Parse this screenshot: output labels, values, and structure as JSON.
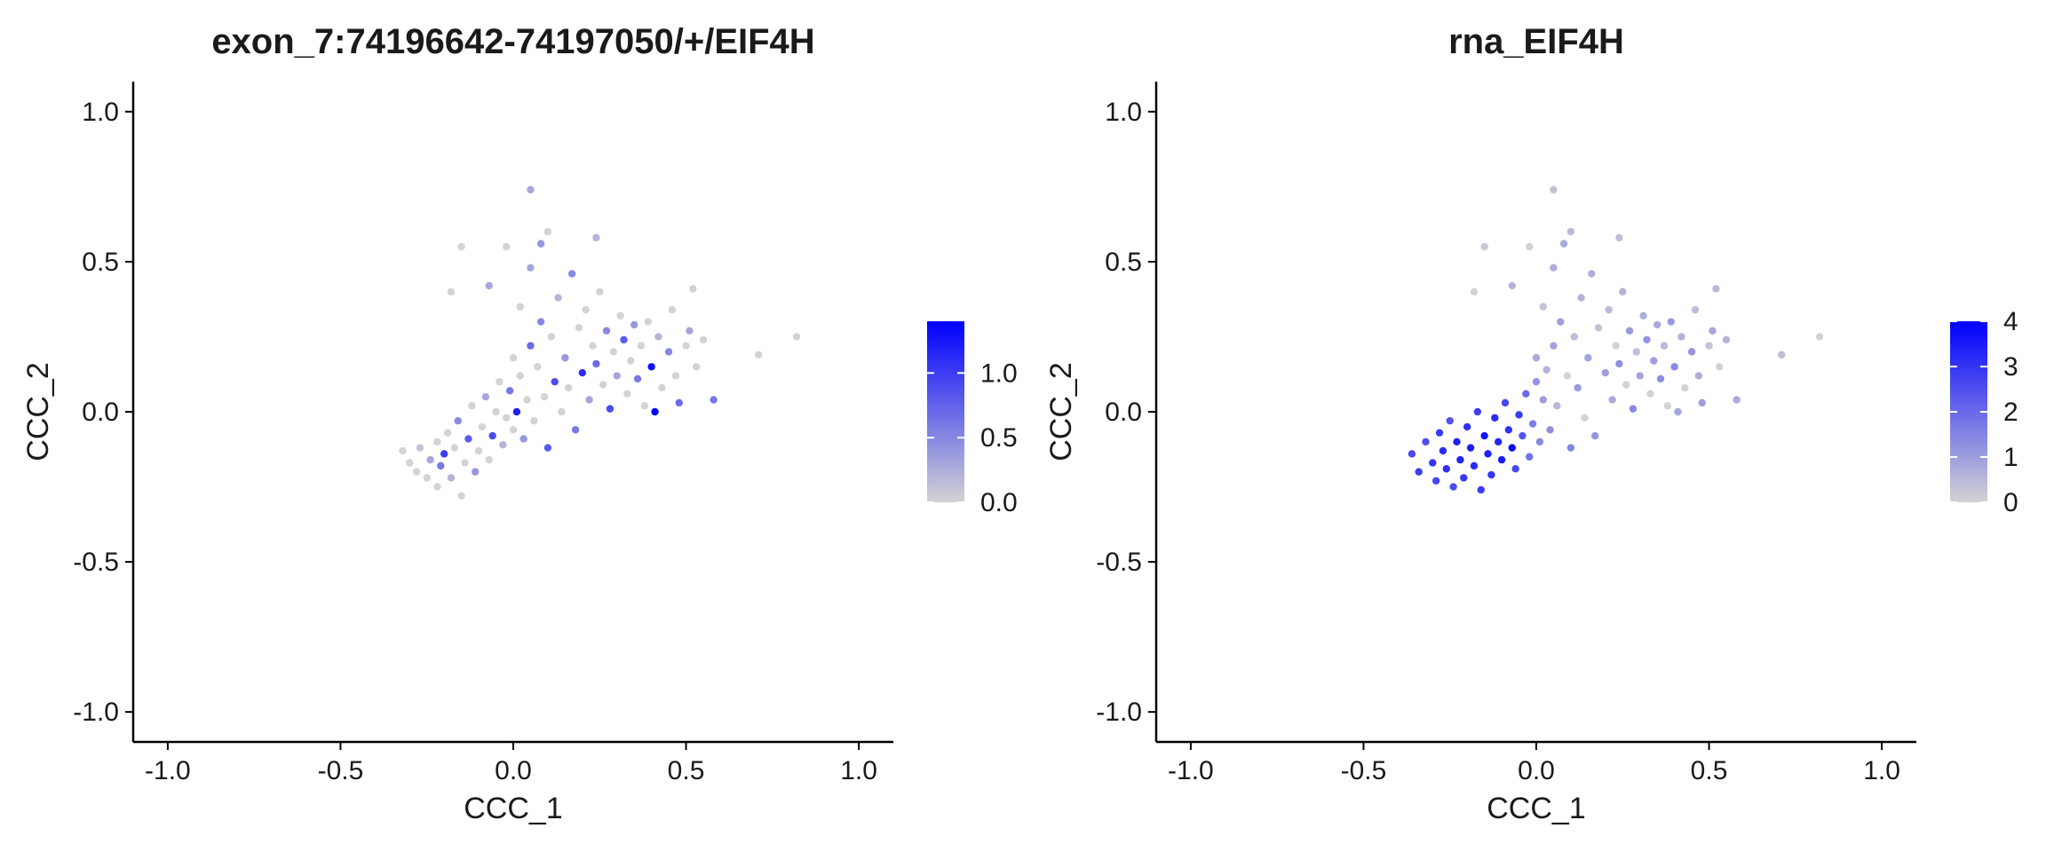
{
  "chart_data": [
    {
      "type": "scatter",
      "title": "exon_7:74196642-74197050/+/EIF4H",
      "xlabel": "CCC_1",
      "ylabel": "CCC_2",
      "xlim": [
        -1.1,
        1.1
      ],
      "ylim": [
        -1.1,
        1.1
      ],
      "x_ticks": [
        -1.0,
        -0.5,
        0.0,
        0.5,
        1.0
      ],
      "x_tick_labels": [
        "-1.0",
        "-0.5",
        "0.0",
        "0.5",
        "1.0"
      ],
      "y_ticks": [
        -1.0,
        -0.5,
        0.0,
        0.5,
        1.0
      ],
      "y_tick_labels": [
        "-1.0",
        "-0.5",
        "0.0",
        "0.5",
        "1.0"
      ],
      "grid": false,
      "legend_position": "right",
      "color_scale": {
        "low": "#d3d3d3",
        "high": "#0000ff",
        "min": 0.0,
        "max": 1.4,
        "ticks": [
          0.0,
          0.5,
          1.0
        ],
        "tick_labels": [
          "0.0",
          "0.5",
          "1.0"
        ]
      },
      "points": [
        {
          "x": -0.32,
          "y": -0.13,
          "v": 0.0
        },
        {
          "x": -0.3,
          "y": -0.17,
          "v": 0.0
        },
        {
          "x": -0.28,
          "y": -0.2,
          "v": 0.0
        },
        {
          "x": -0.27,
          "y": -0.12,
          "v": 0.1
        },
        {
          "x": -0.25,
          "y": -0.22,
          "v": 0.0
        },
        {
          "x": -0.24,
          "y": -0.16,
          "v": 0.3
        },
        {
          "x": -0.22,
          "y": -0.1,
          "v": 0.0
        },
        {
          "x": -0.22,
          "y": -0.25,
          "v": 0.0
        },
        {
          "x": -0.21,
          "y": -0.18,
          "v": 0.6
        },
        {
          "x": -0.2,
          "y": -0.14,
          "v": 1.0
        },
        {
          "x": -0.19,
          "y": -0.07,
          "v": 0.0
        },
        {
          "x": -0.18,
          "y": -0.22,
          "v": 0.2
        },
        {
          "x": -0.17,
          "y": -0.12,
          "v": 0.0
        },
        {
          "x": -0.16,
          "y": -0.03,
          "v": 0.5
        },
        {
          "x": -0.15,
          "y": -0.28,
          "v": 0.0
        },
        {
          "x": -0.14,
          "y": -0.17,
          "v": 0.0
        },
        {
          "x": -0.13,
          "y": -0.09,
          "v": 0.8
        },
        {
          "x": -0.12,
          "y": 0.02,
          "v": 0.0
        },
        {
          "x": -0.11,
          "y": -0.2,
          "v": 0.4
        },
        {
          "x": -0.1,
          "y": -0.13,
          "v": 0.0
        },
        {
          "x": -0.09,
          "y": -0.05,
          "v": 0.0
        },
        {
          "x": -0.08,
          "y": 0.05,
          "v": 0.3
        },
        {
          "x": -0.07,
          "y": -0.16,
          "v": 0.0
        },
        {
          "x": -0.06,
          "y": -0.08,
          "v": 0.9
        },
        {
          "x": -0.05,
          "y": 0.0,
          "v": 0.0
        },
        {
          "x": -0.04,
          "y": 0.1,
          "v": 0.0
        },
        {
          "x": -0.03,
          "y": -0.11,
          "v": 0.2
        },
        {
          "x": -0.02,
          "y": -0.02,
          "v": 0.0
        },
        {
          "x": -0.01,
          "y": 0.07,
          "v": 0.6
        },
        {
          "x": 0.0,
          "y": -0.06,
          "v": 0.0
        },
        {
          "x": 0.0,
          "y": 0.18,
          "v": 0.0
        },
        {
          "x": 0.01,
          "y": 0.0,
          "v": 1.2
        },
        {
          "x": 0.02,
          "y": 0.12,
          "v": 0.0
        },
        {
          "x": 0.03,
          "y": -0.09,
          "v": 0.4
        },
        {
          "x": 0.04,
          "y": 0.04,
          "v": 0.0
        },
        {
          "x": 0.05,
          "y": 0.22,
          "v": 0.7
        },
        {
          "x": 0.05,
          "y": 0.48,
          "v": 0.3
        },
        {
          "x": 0.06,
          "y": -0.03,
          "v": 0.0
        },
        {
          "x": 0.07,
          "y": 0.15,
          "v": 0.0
        },
        {
          "x": 0.08,
          "y": 0.3,
          "v": 0.5
        },
        {
          "x": 0.08,
          "y": 0.56,
          "v": 0.4
        },
        {
          "x": 0.09,
          "y": 0.05,
          "v": 0.0
        },
        {
          "x": 0.1,
          "y": -0.12,
          "v": 0.8
        },
        {
          "x": 0.11,
          "y": 0.25,
          "v": 0.0
        },
        {
          "x": 0.12,
          "y": 0.1,
          "v": 0.9
        },
        {
          "x": 0.13,
          "y": 0.38,
          "v": 0.2
        },
        {
          "x": 0.14,
          "y": 0.0,
          "v": 0.0
        },
        {
          "x": 0.15,
          "y": 0.18,
          "v": 0.4
        },
        {
          "x": 0.16,
          "y": 0.08,
          "v": 0.0
        },
        {
          "x": 0.17,
          "y": 0.46,
          "v": 0.5
        },
        {
          "x": 0.18,
          "y": -0.06,
          "v": 0.6
        },
        {
          "x": 0.19,
          "y": 0.28,
          "v": 0.0
        },
        {
          "x": 0.2,
          "y": 0.13,
          "v": 1.1
        },
        {
          "x": 0.21,
          "y": 0.34,
          "v": 0.0
        },
        {
          "x": 0.22,
          "y": 0.04,
          "v": 0.3
        },
        {
          "x": 0.23,
          "y": 0.22,
          "v": 0.0
        },
        {
          "x": 0.24,
          "y": 0.16,
          "v": 0.7
        },
        {
          "x": 0.25,
          "y": 0.4,
          "v": 0.0
        },
        {
          "x": 0.26,
          "y": 0.09,
          "v": 0.0
        },
        {
          "x": 0.27,
          "y": 0.27,
          "v": 0.5
        },
        {
          "x": 0.28,
          "y": 0.01,
          "v": 0.9
        },
        {
          "x": 0.29,
          "y": 0.2,
          "v": 0.0
        },
        {
          "x": 0.3,
          "y": 0.12,
          "v": 0.3
        },
        {
          "x": 0.31,
          "y": 0.32,
          "v": 0.0
        },
        {
          "x": 0.32,
          "y": 0.24,
          "v": 0.8
        },
        {
          "x": 0.33,
          "y": 0.06,
          "v": 0.0
        },
        {
          "x": 0.34,
          "y": 0.17,
          "v": 0.0
        },
        {
          "x": 0.35,
          "y": 0.29,
          "v": 0.4
        },
        {
          "x": 0.36,
          "y": 0.11,
          "v": 0.6
        },
        {
          "x": 0.37,
          "y": 0.22,
          "v": 0.0
        },
        {
          "x": 0.38,
          "y": 0.02,
          "v": 0.0
        },
        {
          "x": 0.39,
          "y": 0.3,
          "v": 0.0
        },
        {
          "x": 0.4,
          "y": 0.15,
          "v": 1.3
        },
        {
          "x": 0.41,
          "y": 0.0,
          "v": 1.4
        },
        {
          "x": 0.42,
          "y": 0.25,
          "v": 0.2
        },
        {
          "x": 0.43,
          "y": 0.08,
          "v": 0.0
        },
        {
          "x": 0.45,
          "y": 0.2,
          "v": 0.5
        },
        {
          "x": 0.46,
          "y": 0.34,
          "v": 0.0
        },
        {
          "x": 0.47,
          "y": 0.12,
          "v": 0.0
        },
        {
          "x": 0.48,
          "y": 0.03,
          "v": 0.7
        },
        {
          "x": 0.5,
          "y": 0.22,
          "v": 0.0
        },
        {
          "x": 0.51,
          "y": 0.27,
          "v": 0.3
        },
        {
          "x": 0.52,
          "y": 0.41,
          "v": 0.0
        },
        {
          "x": 0.53,
          "y": 0.15,
          "v": 0.0
        },
        {
          "x": 0.55,
          "y": 0.24,
          "v": 0.0
        },
        {
          "x": 0.58,
          "y": 0.04,
          "v": 0.6
        },
        {
          "x": 0.71,
          "y": 0.19,
          "v": 0.0
        },
        {
          "x": 0.82,
          "y": 0.25,
          "v": 0.0
        },
        {
          "x": 0.05,
          "y": 0.74,
          "v": 0.3
        },
        {
          "x": 0.1,
          "y": 0.6,
          "v": 0.0
        },
        {
          "x": 0.24,
          "y": 0.58,
          "v": 0.2
        },
        {
          "x": -0.02,
          "y": 0.55,
          "v": 0.0
        },
        {
          "x": -0.15,
          "y": 0.55,
          "v": 0.0
        },
        {
          "x": -0.18,
          "y": 0.4,
          "v": 0.0
        },
        {
          "x": -0.07,
          "y": 0.42,
          "v": 0.3
        },
        {
          "x": 0.02,
          "y": 0.35,
          "v": 0.0
        }
      ]
    },
    {
      "type": "scatter",
      "title": "rna_EIF4H",
      "xlabel": "CCC_1",
      "ylabel": "CCC_2",
      "xlim": [
        -1.1,
        1.1
      ],
      "ylim": [
        -1.1,
        1.1
      ],
      "x_ticks": [
        -1.0,
        -0.5,
        0.0,
        0.5,
        1.0
      ],
      "x_tick_labels": [
        "-1.0",
        "-0.5",
        "0.0",
        "0.5",
        "1.0"
      ],
      "y_ticks": [
        -1.0,
        -0.5,
        0.0,
        0.5,
        1.0
      ],
      "y_tick_labels": [
        "-1.0",
        "-0.5",
        "0.0",
        "0.5",
        "1.0"
      ],
      "grid": false,
      "legend_position": "right",
      "color_scale": {
        "low": "#d3d3d3",
        "high": "#0000ff",
        "min": 0.0,
        "max": 4.0,
        "ticks": [
          0,
          1,
          2,
          3,
          4
        ],
        "tick_labels": [
          "0",
          "1",
          "2",
          "3",
          "4"
        ]
      },
      "points": [
        {
          "x": -0.36,
          "y": -0.14,
          "v": 2.6
        },
        {
          "x": -0.34,
          "y": -0.2,
          "v": 2.8
        },
        {
          "x": -0.32,
          "y": -0.1,
          "v": 2.5
        },
        {
          "x": -0.3,
          "y": -0.17,
          "v": 3.0
        },
        {
          "x": -0.29,
          "y": -0.23,
          "v": 2.7
        },
        {
          "x": -0.28,
          "y": -0.07,
          "v": 2.9
        },
        {
          "x": -0.27,
          "y": -0.13,
          "v": 3.2
        },
        {
          "x": -0.26,
          "y": -0.19,
          "v": 3.1
        },
        {
          "x": -0.25,
          "y": -0.03,
          "v": 2.4
        },
        {
          "x": -0.24,
          "y": -0.25,
          "v": 2.6
        },
        {
          "x": -0.23,
          "y": -0.1,
          "v": 3.4
        },
        {
          "x": -0.22,
          "y": -0.16,
          "v": 3.3
        },
        {
          "x": -0.21,
          "y": -0.22,
          "v": 3.0
        },
        {
          "x": -0.2,
          "y": -0.05,
          "v": 3.1
        },
        {
          "x": -0.19,
          "y": -0.12,
          "v": 3.5
        },
        {
          "x": -0.18,
          "y": -0.18,
          "v": 3.2
        },
        {
          "x": -0.17,
          "y": 0.0,
          "v": 2.8
        },
        {
          "x": -0.16,
          "y": -0.26,
          "v": 2.9
        },
        {
          "x": -0.15,
          "y": -0.08,
          "v": 3.6
        },
        {
          "x": -0.14,
          "y": -0.14,
          "v": 3.4
        },
        {
          "x": -0.13,
          "y": -0.21,
          "v": 3.0
        },
        {
          "x": -0.12,
          "y": -0.02,
          "v": 3.2
        },
        {
          "x": -0.11,
          "y": -0.1,
          "v": 3.3
        },
        {
          "x": -0.1,
          "y": -0.16,
          "v": 3.5
        },
        {
          "x": -0.09,
          "y": 0.03,
          "v": 2.7
        },
        {
          "x": -0.08,
          "y": -0.06,
          "v": 3.1
        },
        {
          "x": -0.07,
          "y": -0.12,
          "v": 3.9
        },
        {
          "x": -0.06,
          "y": -0.19,
          "v": 2.6
        },
        {
          "x": -0.05,
          "y": -0.01,
          "v": 2.9
        },
        {
          "x": -0.04,
          "y": -0.08,
          "v": 2.4
        },
        {
          "x": -0.03,
          "y": 0.06,
          "v": 2.0
        },
        {
          "x": -0.02,
          "y": -0.15,
          "v": 1.8
        },
        {
          "x": -0.01,
          "y": -0.04,
          "v": 1.6
        },
        {
          "x": 0.0,
          "y": 0.1,
          "v": 1.2
        },
        {
          "x": 0.0,
          "y": 0.18,
          "v": 0.8
        },
        {
          "x": 0.01,
          "y": -0.1,
          "v": 1.4
        },
        {
          "x": 0.02,
          "y": 0.04,
          "v": 1.0
        },
        {
          "x": 0.03,
          "y": 0.14,
          "v": 0.6
        },
        {
          "x": 0.04,
          "y": -0.06,
          "v": 1.3
        },
        {
          "x": 0.05,
          "y": 0.22,
          "v": 0.9
        },
        {
          "x": 0.05,
          "y": 0.48,
          "v": 0.7
        },
        {
          "x": 0.06,
          "y": 0.02,
          "v": 0.5
        },
        {
          "x": 0.07,
          "y": 0.3,
          "v": 1.0
        },
        {
          "x": 0.08,
          "y": 0.56,
          "v": 0.8
        },
        {
          "x": 0.09,
          "y": 0.12,
          "v": 0.0
        },
        {
          "x": 0.1,
          "y": -0.12,
          "v": 1.5
        },
        {
          "x": 0.11,
          "y": 0.25,
          "v": 0.4
        },
        {
          "x": 0.12,
          "y": 0.08,
          "v": 1.1
        },
        {
          "x": 0.13,
          "y": 0.38,
          "v": 0.6
        },
        {
          "x": 0.14,
          "y": -0.02,
          "v": 0.0
        },
        {
          "x": 0.15,
          "y": 0.18,
          "v": 0.9
        },
        {
          "x": 0.16,
          "y": 0.46,
          "v": 0.7
        },
        {
          "x": 0.17,
          "y": -0.08,
          "v": 1.2
        },
        {
          "x": 0.18,
          "y": 0.28,
          "v": 0.3
        },
        {
          "x": 0.2,
          "y": 0.13,
          "v": 1.0
        },
        {
          "x": 0.21,
          "y": 0.34,
          "v": 0.5
        },
        {
          "x": 0.22,
          "y": 0.04,
          "v": 0.8
        },
        {
          "x": 0.23,
          "y": 0.22,
          "v": 0.0
        },
        {
          "x": 0.24,
          "y": 0.16,
          "v": 1.3
        },
        {
          "x": 0.25,
          "y": 0.4,
          "v": 0.6
        },
        {
          "x": 0.26,
          "y": 0.09,
          "v": 0.0
        },
        {
          "x": 0.27,
          "y": 0.27,
          "v": 1.1
        },
        {
          "x": 0.28,
          "y": 0.01,
          "v": 1.4
        },
        {
          "x": 0.29,
          "y": 0.2,
          "v": 0.4
        },
        {
          "x": 0.3,
          "y": 0.12,
          "v": 0.9
        },
        {
          "x": 0.31,
          "y": 0.32,
          "v": 0.7
        },
        {
          "x": 0.32,
          "y": 0.24,
          "v": 1.2
        },
        {
          "x": 0.33,
          "y": 0.06,
          "v": 0.0
        },
        {
          "x": 0.34,
          "y": 0.17,
          "v": 1.0
        },
        {
          "x": 0.35,
          "y": 0.29,
          "v": 0.8
        },
        {
          "x": 0.36,
          "y": 0.11,
          "v": 1.3
        },
        {
          "x": 0.37,
          "y": 0.22,
          "v": 0.5
        },
        {
          "x": 0.38,
          "y": 0.02,
          "v": 0.0
        },
        {
          "x": 0.39,
          "y": 0.3,
          "v": 1.1
        },
        {
          "x": 0.4,
          "y": 0.15,
          "v": 1.4
        },
        {
          "x": 0.41,
          "y": 0.0,
          "v": 0.9
        },
        {
          "x": 0.42,
          "y": 0.25,
          "v": 0.6
        },
        {
          "x": 0.43,
          "y": 0.08,
          "v": 0.0
        },
        {
          "x": 0.45,
          "y": 0.2,
          "v": 1.2
        },
        {
          "x": 0.46,
          "y": 0.34,
          "v": 0.4
        },
        {
          "x": 0.47,
          "y": 0.12,
          "v": 0.7
        },
        {
          "x": 0.48,
          "y": 0.03,
          "v": 1.0
        },
        {
          "x": 0.5,
          "y": 0.22,
          "v": 0.3
        },
        {
          "x": 0.51,
          "y": 0.27,
          "v": 0.9
        },
        {
          "x": 0.52,
          "y": 0.41,
          "v": 0.5
        },
        {
          "x": 0.53,
          "y": 0.15,
          "v": 0.0
        },
        {
          "x": 0.55,
          "y": 0.24,
          "v": 0.6
        },
        {
          "x": 0.58,
          "y": 0.04,
          "v": 0.8
        },
        {
          "x": 0.71,
          "y": 0.19,
          "v": 0.4
        },
        {
          "x": 0.82,
          "y": 0.25,
          "v": 0.0
        },
        {
          "x": 0.05,
          "y": 0.74,
          "v": 0.3
        },
        {
          "x": 0.1,
          "y": 0.6,
          "v": 0.5
        },
        {
          "x": 0.24,
          "y": 0.58,
          "v": 0.4
        },
        {
          "x": -0.02,
          "y": 0.55,
          "v": 0.0
        },
        {
          "x": -0.15,
          "y": 0.55,
          "v": 0.2
        },
        {
          "x": -0.18,
          "y": 0.4,
          "v": 0.0
        },
        {
          "x": -0.07,
          "y": 0.42,
          "v": 0.6
        },
        {
          "x": 0.02,
          "y": 0.35,
          "v": 0.3
        }
      ]
    }
  ]
}
